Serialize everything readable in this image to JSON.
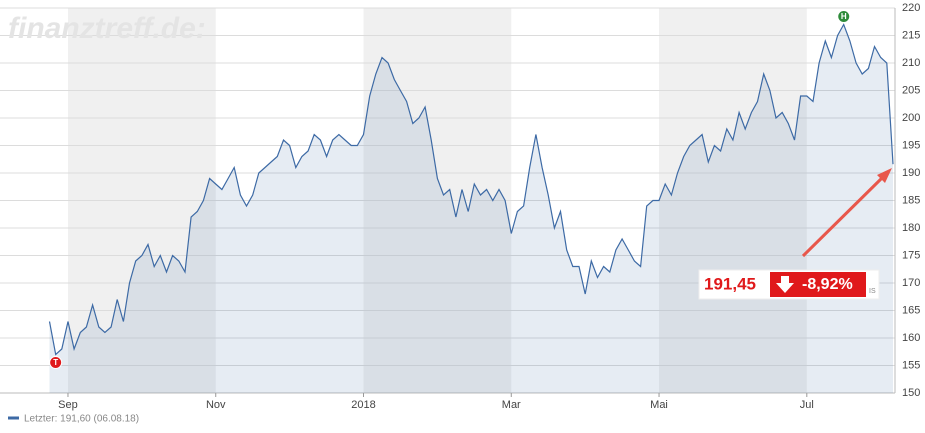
{
  "chart_data": {
    "type": "line",
    "watermark": "finanztreff.de:",
    "categories": [
      null,
      null,
      null,
      "Sep",
      null,
      null,
      null,
      null,
      null,
      null,
      null,
      null,
      null,
      null,
      null,
      null,
      null,
      null,
      null,
      null,
      null,
      null,
      null,
      null,
      null,
      null,
      null,
      "Nov",
      null,
      null,
      null,
      null,
      null,
      null,
      null,
      null,
      null,
      null,
      null,
      null,
      null,
      null,
      null,
      null,
      null,
      null,
      null,
      null,
      null,
      null,
      null,
      "2018",
      null,
      null,
      null,
      null,
      null,
      null,
      null,
      null,
      null,
      null,
      null,
      null,
      null,
      null,
      null,
      null,
      null,
      null,
      null,
      null,
      null,
      null,
      null,
      "Mar",
      null,
      null,
      null,
      null,
      null,
      null,
      null,
      null,
      null,
      null,
      null,
      null,
      null,
      null,
      null,
      null,
      null,
      null,
      null,
      null,
      null,
      null,
      null,
      "Mai",
      null,
      null,
      null,
      null,
      null,
      null,
      null,
      null,
      null,
      null,
      null,
      null,
      null,
      null,
      null,
      null,
      null,
      null,
      null,
      null,
      null,
      null,
      null,
      "Jul",
      null,
      null,
      null,
      null,
      null,
      null,
      null,
      null,
      null,
      null,
      null,
      null,
      null,
      null
    ],
    "series": [
      {
        "name": "Letzter: 191,60 (06.08.18)",
        "color": "#3d6aa5",
        "values": [
          163,
          157,
          158,
          163,
          158,
          161,
          162,
          166,
          162,
          161,
          162,
          167,
          163,
          170,
          174,
          175,
          177,
          173,
          175,
          172,
          175,
          174,
          172,
          182,
          183,
          185,
          189,
          188,
          187,
          189,
          191,
          186,
          184,
          186,
          190,
          191,
          192,
          193,
          196,
          195,
          191,
          193,
          194,
          197,
          196,
          193,
          196,
          197,
          196,
          195,
          195,
          197,
          204,
          208,
          211,
          210,
          207,
          205,
          203,
          199,
          200,
          202,
          196,
          189,
          186,
          187,
          182,
          187,
          183,
          188,
          186,
          187,
          185,
          187,
          185,
          179,
          183,
          184,
          191,
          197,
          191,
          186,
          180,
          183,
          176,
          173,
          173,
          168,
          174,
          171,
          173,
          172,
          176,
          178,
          176,
          174,
          173,
          184,
          185,
          185,
          188,
          186,
          190,
          193,
          195,
          196,
          197,
          192,
          195,
          194,
          198,
          196,
          201,
          198,
          201,
          203,
          208,
          205,
          200,
          201,
          199,
          196,
          204,
          204,
          203,
          210,
          214,
          211,
          215,
          217,
          214,
          210,
          208,
          209,
          213,
          211,
          210,
          191.6
        ]
      }
    ],
    "ylim": [
      150,
      220
    ],
    "yticks": [
      150,
      155,
      160,
      165,
      170,
      175,
      180,
      185,
      190,
      195,
      200,
      205,
      210,
      215,
      220
    ],
    "grid": true,
    "low_marker": "T",
    "high_marker": "H",
    "quote": {
      "price": "191,45",
      "change": "-8,92%",
      "suffix": "IS"
    }
  }
}
